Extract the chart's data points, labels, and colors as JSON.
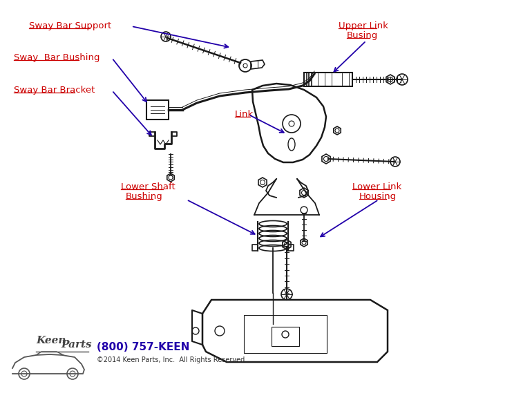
{
  "bg_color": "#ffffff",
  "label_color": "#cc0000",
  "arrow_color": "#2200aa",
  "line_color": "#1a1a1a",
  "labels": {
    "sway_bar_support": "Sway Bar Support",
    "sway_bar_bushing": "Sway  Bar Bushing",
    "sway_bar_bracket": "Sway Bar Bracket",
    "link": "Link",
    "upper_link_busing_1": "Upper Link",
    "upper_link_busing_2": "Busing",
    "lower_shaft_bushing_1": "Lower Shaft",
    "lower_shaft_bushing_2": "Bushing",
    "lower_link_housing_1": "Lower Link",
    "lower_link_housing_2": "Housing"
  },
  "footer_phone": "(800) 757-KEEN",
  "footer_copy": "©2014 Keen Parts, Inc.  All Rights Reserved",
  "footer_phone_color": "#2200aa",
  "footer_copy_color": "#333333"
}
